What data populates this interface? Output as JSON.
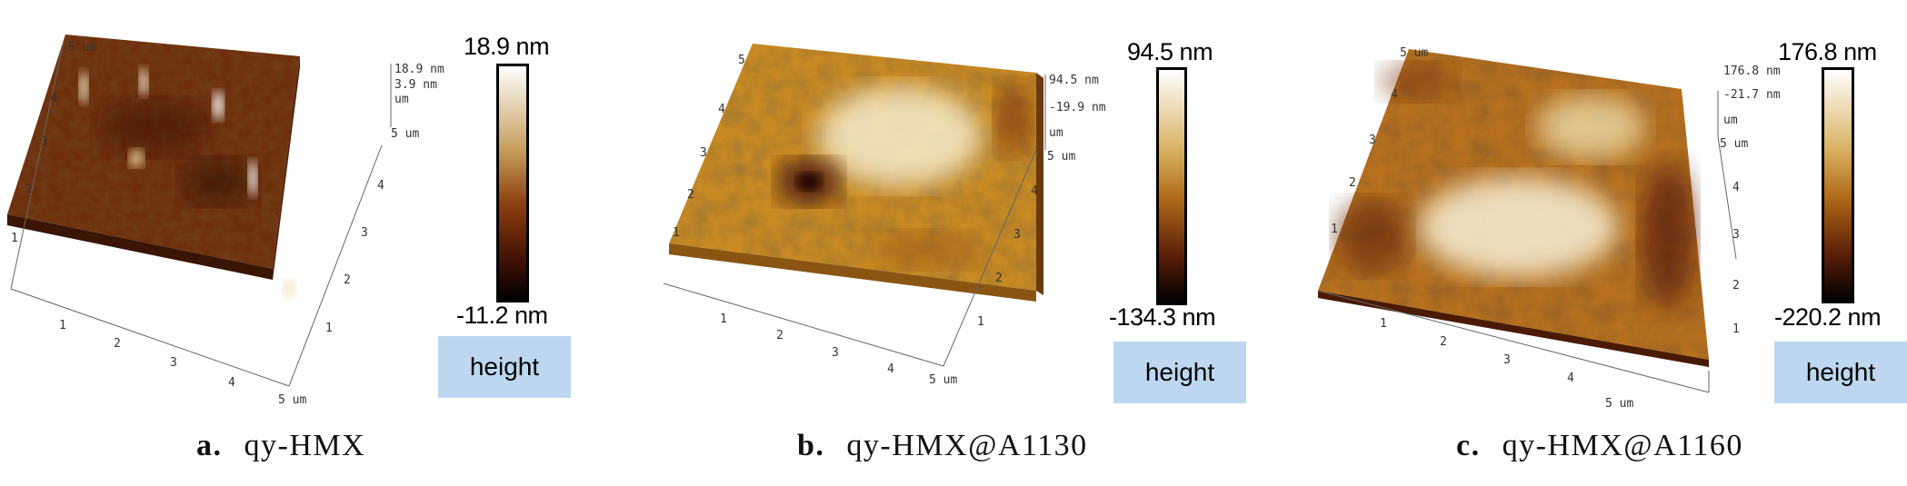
{
  "panels": [
    {
      "letter": "a.",
      "name": "qy-HMX",
      "scale_max": "18.9 nm",
      "scale_min": "-11.2 nm",
      "button": "height",
      "z_labels": [
        "18.9 nm",
        "3.9 nm",
        "um"
      ],
      "corner_label": "5 um",
      "y_ticks": [
        "1",
        "2",
        "3",
        "4",
        "5 um"
      ],
      "x_ticks": [
        "1",
        "2",
        "3",
        "4",
        "5 um"
      ],
      "r_ticks": [
        "1",
        "2",
        "3",
        "4",
        "5 um"
      ],
      "colors": {
        "dark": "#2a0d03",
        "mid": "#8a3c0c",
        "light": "#f2e2b8"
      }
    },
    {
      "letter": "b.",
      "name": "qy-HMX@A1130",
      "scale_max": "94.5 nm",
      "scale_min": "-134.3 nm",
      "button": "height",
      "z_labels": [
        "94.5 nm",
        "-19.9 nm",
        "um"
      ],
      "corner_label": "5 um",
      "y_ticks": [
        "1",
        "2",
        "3",
        "4",
        "5"
      ],
      "x_ticks": [
        "1",
        "2",
        "3",
        "4",
        "5 um"
      ],
      "r_ticks": [
        "1",
        "2",
        "3",
        "4",
        "5 um"
      ],
      "colors": {
        "dark": "#5a2408",
        "mid": "#c8921f",
        "light": "#f4ecc8"
      }
    },
    {
      "letter": "c.",
      "name": "qy-HMX@A1160",
      "scale_max": "176.8 nm",
      "scale_min": "-220.2 nm",
      "button": "height",
      "z_labels": [
        "176.8 nm",
        "-21.7 nm",
        "um"
      ],
      "corner_label": "5 um",
      "y_ticks": [
        "1",
        "2",
        "3",
        "4",
        "5"
      ],
      "x_ticks": [
        "1",
        "2",
        "3",
        "4",
        "5 um"
      ],
      "r_ticks": [
        "1",
        "2",
        "3",
        "4",
        "5 um"
      ],
      "colors": {
        "dark": "#4a1a05",
        "mid": "#b5701a",
        "light": "#f5eccb"
      }
    }
  ]
}
